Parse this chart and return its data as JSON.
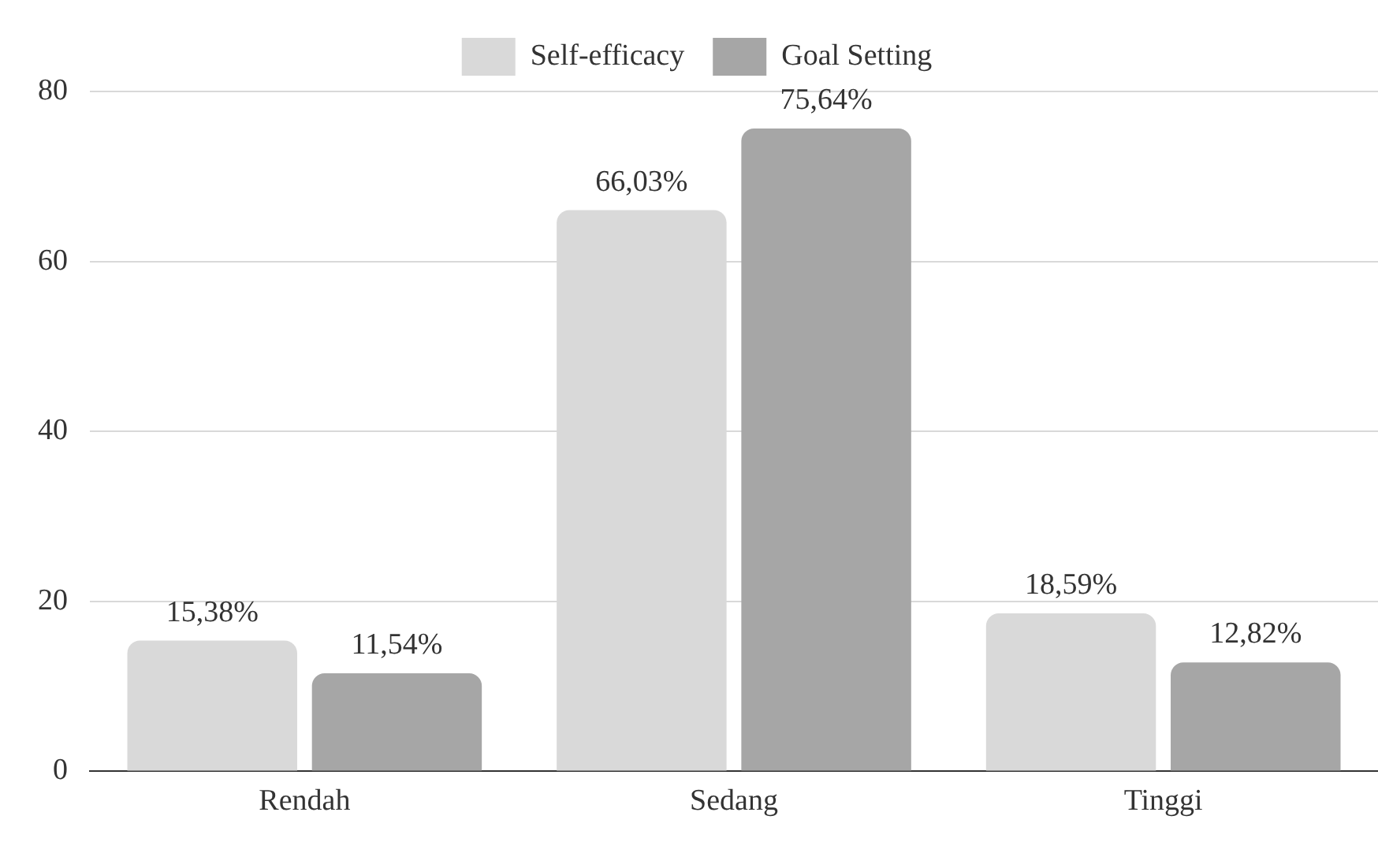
{
  "chart_data": {
    "type": "bar",
    "categories": [
      "Rendah",
      "Sedang",
      "Tinggi"
    ],
    "series": [
      {
        "name": "Self-efficacy",
        "color": "#d9d9d9",
        "values": [
          15.38,
          66.03,
          18.59
        ],
        "value_labels": [
          "15,38%",
          "66,03%",
          "18,59%"
        ]
      },
      {
        "name": "Goal Setting",
        "color": "#a6a6a6",
        "values": [
          11.54,
          75.64,
          12.82
        ],
        "value_labels": [
          "11,54%",
          "75,64%",
          "12,82%"
        ]
      }
    ],
    "ylim": [
      0,
      80
    ],
    "yticks": [
      0,
      20,
      40,
      60,
      80
    ],
    "grid": "y",
    "legend": "top"
  }
}
